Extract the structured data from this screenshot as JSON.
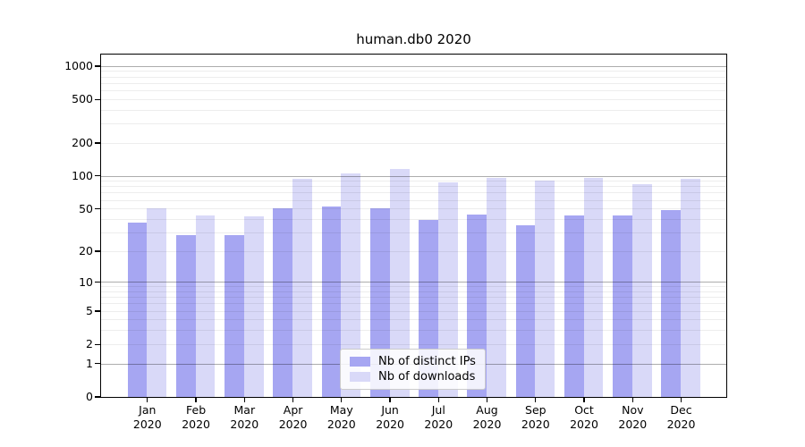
{
  "chart_data": {
    "type": "bar",
    "title": "human.db0 2020",
    "categories": [
      "Jan",
      "Feb",
      "Mar",
      "Apr",
      "May",
      "Jun",
      "Jul",
      "Aug",
      "Sep",
      "Oct",
      "Nov",
      "Dec"
    ],
    "category_year": "2020",
    "series": [
      {
        "name": "Nb of distinct IPs",
        "color": "#a6a6f2",
        "values": [
          37,
          28,
          28,
          50,
          52,
          50,
          39,
          44,
          35,
          43,
          43,
          48
        ]
      },
      {
        "name": "Nb of downloads",
        "color": "#d9d9f8",
        "values": [
          50,
          43,
          42,
          93,
          105,
          115,
          87,
          95,
          91,
          96,
          84,
          93
        ]
      }
    ],
    "y_scale": "log10(1+v)",
    "ylim": [
      0,
      1276
    ],
    "yticks": [
      1000,
      500,
      200,
      100,
      50,
      20,
      10,
      5,
      2,
      1,
      0
    ],
    "major_gridline_values": [
      1,
      10,
      100,
      1000
    ],
    "grid": true,
    "legend_position": "bottom-center"
  },
  "colors": {
    "bar_distinct_ips": "#a6a6f2",
    "bar_downloads": "#d9d9f8",
    "major_grid": "#b0b0b0",
    "minor_grid": "#ececec",
    "axis": "#000000",
    "legend_border": "#cccccc",
    "background": "#ffffff"
  }
}
